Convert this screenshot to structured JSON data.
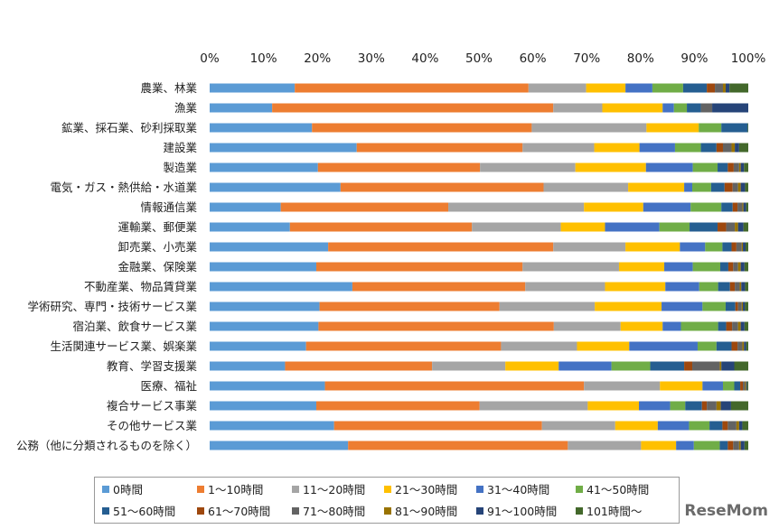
{
  "chart_data": {
    "type": "bar",
    "orientation": "horizontal",
    "stacked": true,
    "normalized": true,
    "xlim": [
      0,
      100
    ],
    "x_ticks": [
      "0%",
      "10%",
      "20%",
      "30%",
      "40%",
      "50%",
      "60%",
      "70%",
      "80%",
      "90%",
      "100%"
    ],
    "grid": false,
    "legend_position": "bottom",
    "categories": [
      "農業、林業",
      "漁業",
      "鉱業、採石業、砂利採取業",
      "建設業",
      "製造業",
      "電気・ガス・熱供給・水道業",
      "情報通信業",
      "運輸業、郵便業",
      "卸売業、小売業",
      "金融業、保険業",
      "不動産業、物品賃貸業",
      "学術研究、専門・技術サービス業",
      "宿泊業、飲食サービス業",
      "生活関連サービス業、娯楽業",
      "教育、学習支援業",
      "医療、福祉",
      "複合サービス事業",
      "その他サービス業",
      "公務（他に分類されるものを除く）"
    ],
    "series": [
      {
        "name": "0時間",
        "color": "#5b9bd5",
        "values": [
          15.8,
          11.6,
          19,
          27.3,
          20.1,
          24.3,
          13.2,
          14.9,
          22,
          19.8,
          26.5,
          20.4,
          20.2,
          17.9,
          14,
          21.4,
          19.8,
          23.1,
          25.7
        ]
      },
      {
        "name": "1～10時間",
        "color": "#ed7d31",
        "values": [
          43.4,
          52.2,
          40.8,
          30.8,
          30.1,
          37.7,
          31.1,
          33.8,
          41.8,
          38.3,
          32.1,
          33.4,
          43.7,
          36.2,
          27.3,
          48.1,
          30.3,
          38.6,
          40.8
        ]
      },
      {
        "name": "11～20時間",
        "color": "#a5a5a5",
        "values": [
          10.7,
          9.1,
          21.3,
          13.3,
          17.7,
          15.7,
          25.2,
          16.5,
          13.4,
          17.9,
          14.8,
          17.7,
          12.4,
          14.1,
          13.6,
          14.1,
          20.1,
          13.6,
          13.6
        ]
      },
      {
        "name": "21～30時間",
        "color": "#ffc000",
        "values": [
          7.3,
          11.2,
          9.7,
          8.4,
          13.1,
          10.4,
          11,
          8.2,
          10.1,
          8.4,
          11.2,
          12.4,
          7.8,
          9.7,
          9.9,
          7.9,
          9.5,
          7.9,
          6.5
        ]
      },
      {
        "name": "31～40時間",
        "color": "#4472c4",
        "values": [
          5,
          2.1,
          0,
          6.6,
          8.7,
          1.5,
          8.8,
          10.1,
          4.7,
          5.3,
          6.3,
          7.6,
          3.4,
          12.7,
          9.8,
          3.8,
          5.8,
          5.8,
          3.3
        ]
      },
      {
        "name": "41～50時間",
        "color": "#70ad47",
        "values": [
          5.7,
          2.4,
          4.2,
          4.8,
          4.6,
          3.5,
          5.7,
          5.6,
          3.2,
          5.1,
          3.5,
          4.3,
          6.9,
          3.5,
          7.2,
          2.1,
          2.8,
          3.8,
          4.8
        ]
      },
      {
        "name": "51～60時間",
        "color": "#255e91",
        "values": [
          4.4,
          2.6,
          4.9,
          2.9,
          1.9,
          2.5,
          2.1,
          5.2,
          1.7,
          1.5,
          2.2,
          1.8,
          1.5,
          2.8,
          6.3,
          1.1,
          3.1,
          2.4,
          1.5
        ]
      },
      {
        "name": "61～70時間",
        "color": "#9e480e",
        "values": [
          1.5,
          0,
          0,
          1.2,
          1.1,
          1.5,
          0.9,
          1.6,
          0.9,
          0.9,
          0.9,
          0.5,
          1.1,
          1.1,
          1.5,
          0.5,
          0.9,
          1,
          1
        ]
      },
      {
        "name": "71～80時間",
        "color": "#636363",
        "values": [
          1.5,
          2.1,
          0,
          1.6,
          1,
          1,
          0.9,
          1.6,
          1,
          0.9,
          0.9,
          0.7,
          1.1,
          0.9,
          5.1,
          0.4,
          1.8,
          1.6,
          1.1
        ]
      },
      {
        "name": "81～90時間",
        "color": "#997300",
        "values": [
          0.5,
          0,
          0,
          0.6,
          0.3,
          0.5,
          0.2,
          0.6,
          0.2,
          0.5,
          0.3,
          0.2,
          0.5,
          0.3,
          0.3,
          0.2,
          0.8,
          0.5,
          0.3
        ]
      },
      {
        "name": "91～100時間",
        "color": "#264478",
        "values": [
          0.7,
          6.7,
          0,
          0.8,
          0.6,
          0.8,
          0.5,
          1,
          0.5,
          0.7,
          0.7,
          0.4,
          0.7,
          0.4,
          2.4,
          0.2,
          1.9,
          0.6,
          0.7
        ]
      },
      {
        "name": "101時間～",
        "color": "#43682b",
        "values": [
          3.5,
          0,
          0.1,
          1.7,
          0.8,
          0.6,
          0.4,
          0.9,
          0.5,
          0.7,
          0.6,
          0.6,
          0.7,
          0.4,
          2.6,
          0.2,
          3.2,
          1.1,
          0.7
        ]
      }
    ]
  },
  "watermark": "ReseMom"
}
